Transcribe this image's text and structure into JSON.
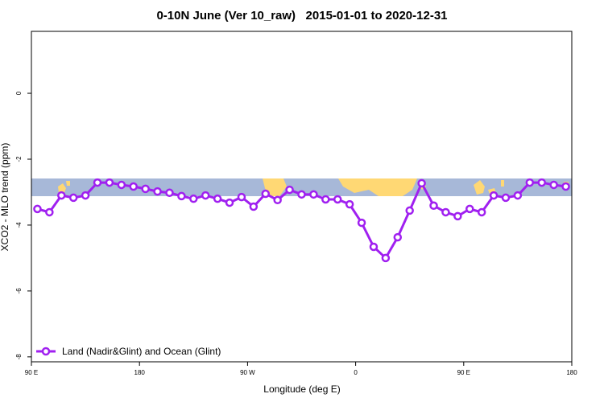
{
  "chart_data": {
    "type": "line",
    "title": "0-10N June (Ver 10_raw)   2015-01-01 to 2020-12-31",
    "x_label": "Longitude (deg E)",
    "y_label": "XCO2 - MLO trend (ppm)",
    "xlim": [
      90,
      540
    ],
    "ylim": [
      -8.15,
      1.88
    ],
    "xticks": [
      {
        "value": 90,
        "label": "90 E"
      },
      {
        "value": 180,
        "label": "180"
      },
      {
        "value": 270,
        "label": "90 W"
      },
      {
        "value": 360,
        "label": "0"
      },
      {
        "value": 450,
        "label": "90 E"
      },
      {
        "value": 540,
        "label": "180"
      }
    ],
    "yticks": [
      0,
      -2,
      -4,
      -6,
      -8
    ],
    "legend_position": "bottom-left",
    "x": [
      95,
      105,
      115,
      125,
      135,
      145,
      155,
      165,
      175,
      185,
      195,
      205,
      215,
      225,
      235,
      245,
      255,
      265,
      275,
      285,
      295,
      305,
      315,
      325,
      335,
      345,
      355,
      365,
      375,
      385,
      395,
      405,
      415,
      425,
      435,
      445,
      455,
      465,
      475,
      485,
      495,
      505,
      515,
      525,
      535
    ],
    "series": [
      {
        "name": "Land (Nadir&Glint) and Ocean (Glint)",
        "color": "#a020f0",
        "values": [
          -3.51,
          -3.61,
          -3.1,
          -3.17,
          -3.1,
          -2.71,
          -2.71,
          -2.78,
          -2.83,
          -2.9,
          -2.98,
          -3.02,
          -3.12,
          -3.2,
          -3.1,
          -3.2,
          -3.32,
          -3.15,
          -3.44,
          -3.05,
          -3.24,
          -2.93,
          -3.07,
          -3.07,
          -3.22,
          -3.22,
          -3.37,
          -3.93,
          -4.66,
          -5.0,
          -4.37,
          -3.56,
          -2.73,
          -3.41,
          -3.61,
          -3.73,
          -3.51,
          -3.61,
          -3.1,
          -3.17,
          -3.1,
          -2.71,
          -2.71,
          -2.78,
          -2.83
        ]
      }
    ]
  }
}
